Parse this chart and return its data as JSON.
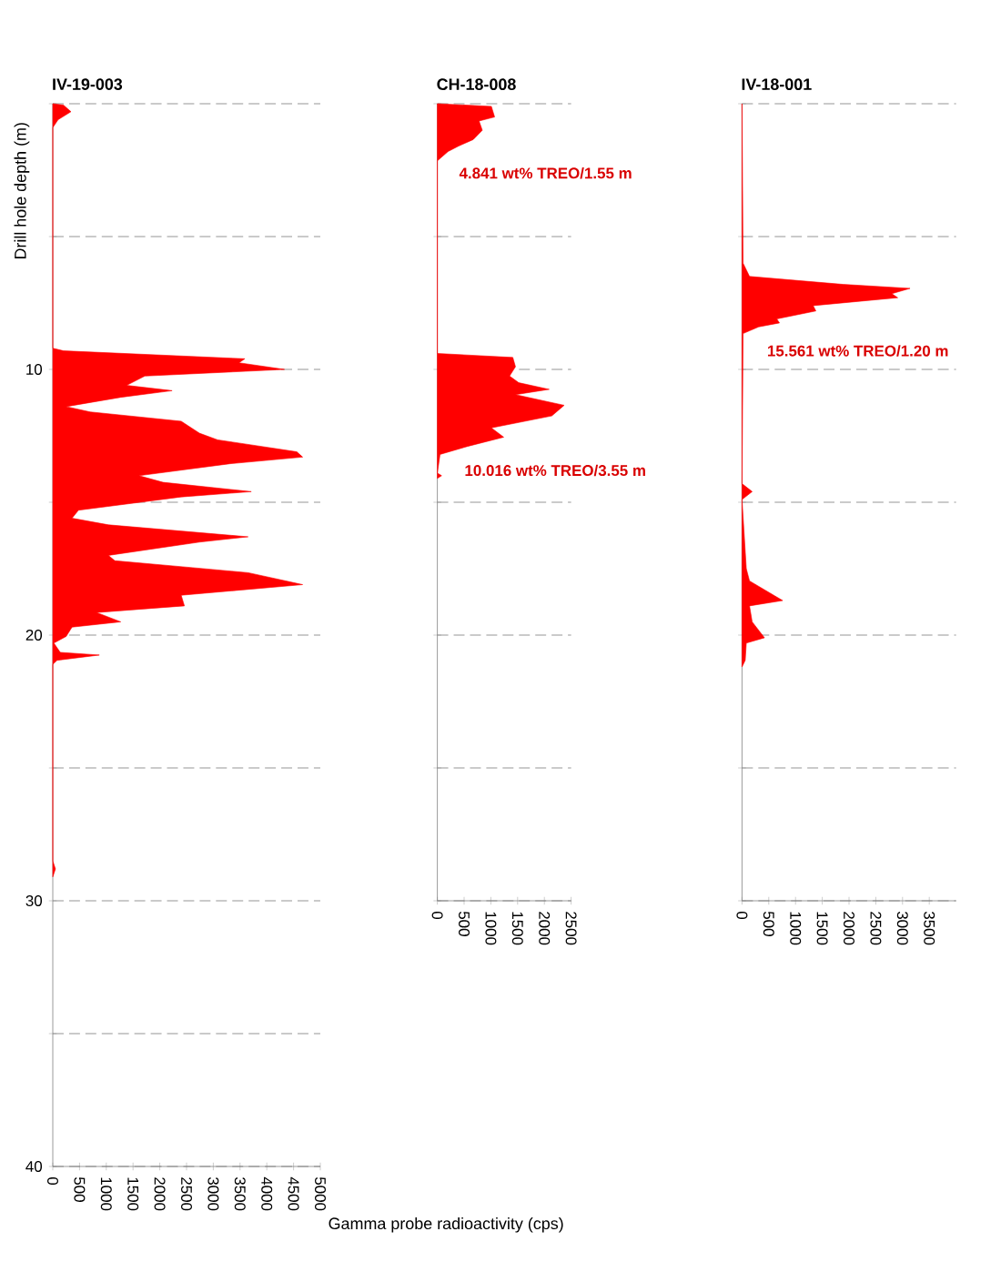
{
  "chart_data": [
    {
      "type": "area",
      "orientation": "horizontal",
      "title": "IV-19-003",
      "xlabel": "Gamma probe radioactivity (cps)",
      "ylabel": "Drill hole depth (m)",
      "xlim": [
        0,
        5000
      ],
      "xticks": [
        0,
        500,
        1000,
        1500,
        2000,
        2500,
        3000,
        3500,
        4000,
        4500,
        5000
      ],
      "ylim": [
        40,
        0
      ],
      "yticks": [
        {
          "value": 0,
          "label": null
        },
        {
          "value": 5,
          "label": null
        },
        10,
        {
          "value": 15,
          "label": null
        },
        20,
        {
          "value": 25,
          "label": null
        },
        30,
        {
          "value": 35,
          "label": null
        },
        40
      ],
      "grid": "y",
      "series": [
        {
          "color": "#ff0000",
          "x": [
            0,
            0.05,
            0.3,
            0.6,
            0.9,
            9.2,
            9.3,
            9.6,
            9.75,
            10.0,
            10.25,
            10.6,
            10.8,
            11.05,
            11.4,
            11.6,
            11.95,
            12.4,
            12.65,
            13.1,
            13.3,
            13.55,
            14.0,
            14.25,
            14.6,
            14.8,
            15.3,
            15.6,
            15.85,
            16.3,
            16.5,
            17.0,
            17.2,
            17.65,
            18.1,
            18.5,
            18.9,
            19.15,
            19.5,
            19.7,
            20.05,
            20.3,
            20.65,
            20.75,
            20.95,
            21.1,
            28.5,
            28.8,
            29.1
          ],
          "values": [
            0,
            200,
            340,
            100,
            0,
            0,
            200,
            3590,
            3480,
            4330,
            1720,
            1380,
            2230,
            1270,
            250,
            700,
            2400,
            2740,
            3080,
            4560,
            4670,
            3310,
            1610,
            2060,
            3710,
            2400,
            480,
            360,
            1040,
            3650,
            2740,
            1040,
            1160,
            3650,
            4670,
            2400,
            2460,
            820,
            1270,
            360,
            250,
            20,
            140,
            870,
            80,
            0,
            0,
            50,
            0
          ]
        }
      ]
    },
    {
      "type": "area",
      "orientation": "horizontal",
      "title": "CH-18-008",
      "xlim": [
        0,
        2500
      ],
      "xticks": [
        0,
        500,
        1000,
        1500,
        2000,
        2500
      ],
      "ylim": [
        30,
        0
      ],
      "yticks": [
        0,
        5,
        10,
        15,
        20,
        25,
        30
      ],
      "tick_labels": "x",
      "grid": "y",
      "series": [
        {
          "color": "#ff0000",
          "x": [
            0,
            0.1,
            0.5,
            0.65,
            1.0,
            1.35,
            1.6,
            1.8,
            2.15,
            9.4,
            9.55,
            9.9,
            10.25,
            10.5,
            10.75,
            10.95,
            11.35,
            11.75,
            12.2,
            12.55,
            12.9,
            13.2,
            13.9,
            14.0,
            14.1
          ],
          "values": [
            0,
            1010,
            1070,
            780,
            840,
            670,
            390,
            200,
            0,
            0,
            1410,
            1460,
            1350,
            1520,
            2090,
            1460,
            2370,
            2140,
            1010,
            1240,
            560,
            50,
            0,
            80,
            0
          ]
        }
      ],
      "annotations": [
        "4.841 wt% TREO/1.55 m",
        "10.016 wt% TREO/3.55 m"
      ]
    },
    {
      "type": "area",
      "orientation": "horizontal",
      "title": "IV-18-001",
      "xlim": [
        0,
        4000
      ],
      "xticks": [
        0,
        500,
        1000,
        1500,
        2000,
        2500,
        3000,
        3500
      ],
      "ylim": [
        30,
        0
      ],
      "yticks": [
        0,
        5,
        10,
        15,
        20,
        25,
        30
      ],
      "tick_labels": "x",
      "grid": "y",
      "series": [
        {
          "color": "#ff0000",
          "x": [
            0,
            6.0,
            6.5,
            6.8,
            6.95,
            7.15,
            7.3,
            7.6,
            7.8,
            8.1,
            8.25,
            8.4,
            8.65,
            14.3,
            14.6,
            14.9,
            17.5,
            17.96,
            18.7,
            18.9,
            19.5,
            20.1,
            20.3,
            20.95,
            21.2
          ],
          "values": [
            0,
            20,
            140,
            1890,
            3140,
            2800,
            2910,
            1330,
            1380,
            650,
            700,
            310,
            20,
            0,
            190,
            0,
            80,
            140,
            760,
            140,
            190,
            420,
            80,
            60,
            0
          ]
        }
      ],
      "annotations": [
        "15.561 wt% TREO/1.20 m"
      ]
    }
  ]
}
